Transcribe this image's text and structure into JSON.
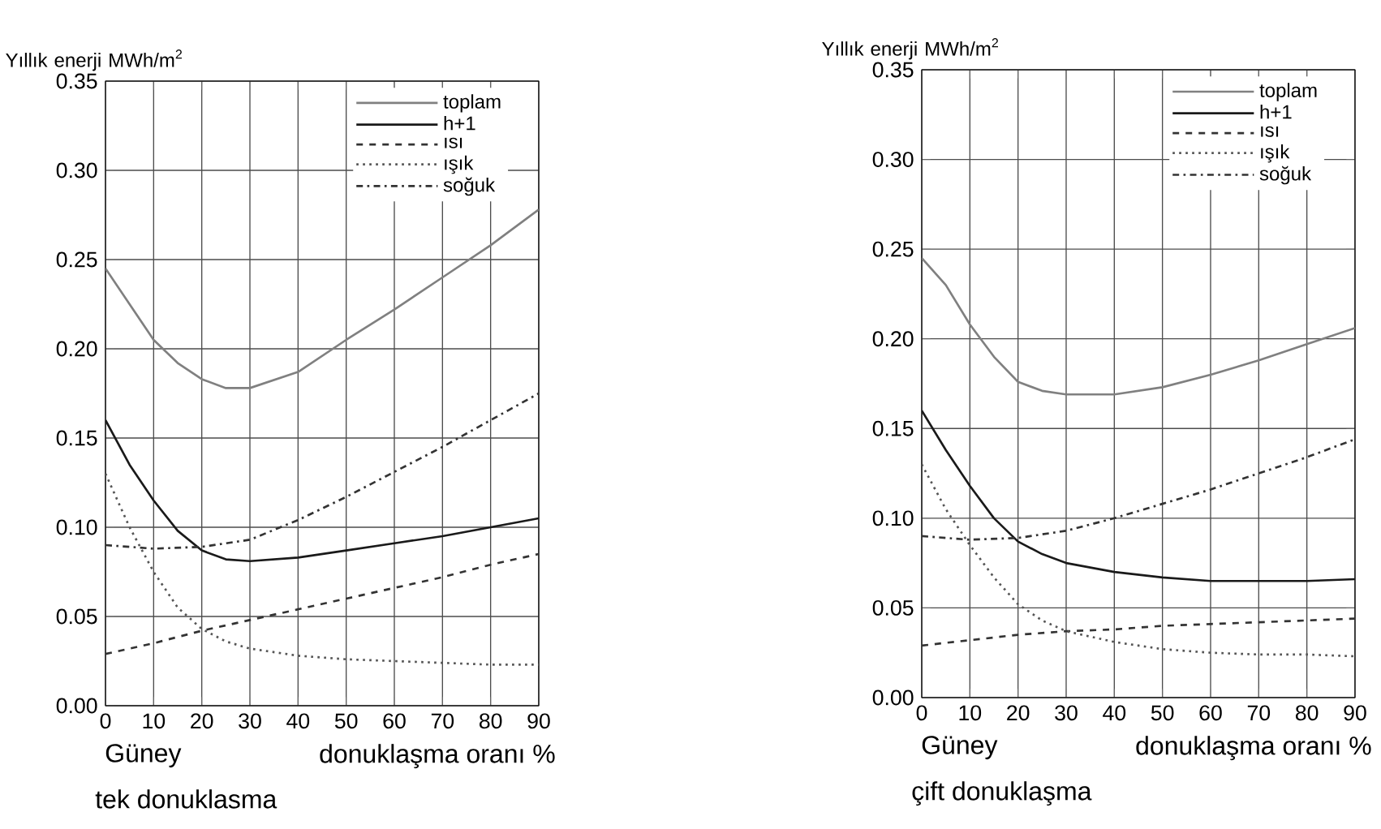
{
  "chart_data": [
    {
      "type": "line",
      "title": "tek donuklasma",
      "ylabel": "Yıllık enerji MWh/m$^{2}$",
      "xlabel": "donuklaşma oranı %",
      "annotations": [
        "Güney"
      ],
      "xlim": [
        0,
        90
      ],
      "ylim": [
        0,
        0.35
      ],
      "xticks": [
        0,
        10,
        20,
        30,
        40,
        50,
        60,
        70,
        80,
        90
      ],
      "yticks": [
        {
          "value": 0,
          "label": "0.00"
        },
        {
          "value": 0.05,
          "label": "0.05"
        },
        {
          "value": 0.1,
          "label": "0.10"
        },
        {
          "value": 0.15,
          "label": "0.15"
        },
        {
          "value": 0.2,
          "label": "0.20"
        },
        {
          "value": 0.25,
          "label": "0.25"
        },
        {
          "value": 0.3,
          "label": "0.30"
        },
        {
          "value": 0.35,
          "label": "0.35"
        }
      ],
      "grid": true,
      "legend": "top right",
      "series": [
        {
          "name": "toplam",
          "color": "#808080",
          "line_style": "solid",
          "x": [
            0,
            5,
            10,
            15,
            20,
            25,
            30,
            40,
            50,
            60,
            70,
            80,
            90
          ],
          "values": [
            0.245,
            0.225,
            0.205,
            0.192,
            0.183,
            0.178,
            0.178,
            0.187,
            0.205,
            0.222,
            0.24,
            0.258,
            0.278
          ]
        },
        {
          "name": "h+1",
          "color": "#1a1a1a",
          "line_style": "solid",
          "x": [
            0,
            5,
            10,
            15,
            20,
            25,
            30,
            40,
            50,
            60,
            70,
            80,
            90
          ],
          "values": [
            0.16,
            0.135,
            0.115,
            0.098,
            0.087,
            0.082,
            0.081,
            0.083,
            0.087,
            0.091,
            0.095,
            0.1,
            0.105
          ]
        },
        {
          "name": "ısı",
          "color": "#333333",
          "line_style": "dashed",
          "x": [
            0,
            10,
            20,
            30,
            40,
            50,
            60,
            70,
            80,
            90
          ],
          "values": [
            0.029,
            0.035,
            0.042,
            0.048,
            0.054,
            0.06,
            0.066,
            0.072,
            0.079,
            0.085
          ]
        },
        {
          "name": "ışık",
          "color": "#555555",
          "line_style": "dotted",
          "x": [
            0,
            5,
            10,
            15,
            20,
            25,
            30,
            40,
            50,
            60,
            70,
            80,
            90
          ],
          "values": [
            0.13,
            0.1,
            0.075,
            0.055,
            0.043,
            0.036,
            0.032,
            0.028,
            0.026,
            0.025,
            0.024,
            0.023,
            0.023
          ]
        },
        {
          "name": "soğuk",
          "color": "#333333",
          "line_style": "dashdot",
          "x": [
            0,
            10,
            20,
            30,
            40,
            50,
            60,
            70,
            80,
            90
          ],
          "values": [
            0.09,
            0.088,
            0.089,
            0.093,
            0.104,
            0.117,
            0.131,
            0.145,
            0.16,
            0.175
          ]
        }
      ]
    },
    {
      "type": "line",
      "title": "çift donuklaşma",
      "ylabel": "Yıllık enerji MWh/m$^{2}$",
      "xlabel": "donuklaşma oranı %",
      "annotations": [
        "Güney"
      ],
      "xlim": [
        0,
        90
      ],
      "ylim": [
        0,
        0.35
      ],
      "xticks": [
        0,
        10,
        20,
        30,
        40,
        50,
        60,
        70,
        80,
        90
      ],
      "yticks": [
        {
          "value": 0,
          "label": "0.00"
        },
        {
          "value": 0.05,
          "label": "0.05"
        },
        {
          "value": 0.1,
          "label": "0.10"
        },
        {
          "value": 0.15,
          "label": "0.15"
        },
        {
          "value": 0.2,
          "label": "0.20"
        },
        {
          "value": 0.25,
          "label": "0.25"
        },
        {
          "value": 0.3,
          "label": "0.30"
        },
        {
          "value": 0.35,
          "label": "0.35"
        }
      ],
      "grid": true,
      "legend": "top right",
      "series": [
        {
          "name": "toplam",
          "color": "#808080",
          "line_style": "solid",
          "x": [
            0,
            5,
            10,
            15,
            20,
            25,
            30,
            40,
            50,
            60,
            70,
            80,
            90
          ],
          "values": [
            0.245,
            0.23,
            0.208,
            0.19,
            0.176,
            0.171,
            0.169,
            0.169,
            0.173,
            0.18,
            0.188,
            0.197,
            0.206
          ]
        },
        {
          "name": "h+1",
          "color": "#1a1a1a",
          "line_style": "solid",
          "x": [
            0,
            5,
            10,
            15,
            20,
            25,
            30,
            40,
            50,
            60,
            70,
            80,
            90
          ],
          "values": [
            0.16,
            0.138,
            0.118,
            0.1,
            0.087,
            0.08,
            0.075,
            0.07,
            0.067,
            0.065,
            0.065,
            0.065,
            0.066
          ]
        },
        {
          "name": "ısı",
          "color": "#333333",
          "line_style": "dashed",
          "x": [
            0,
            10,
            20,
            30,
            40,
            50,
            60,
            70,
            80,
            90
          ],
          "values": [
            0.029,
            0.032,
            0.035,
            0.037,
            0.038,
            0.04,
            0.041,
            0.042,
            0.043,
            0.044
          ]
        },
        {
          "name": "ışık",
          "color": "#555555",
          "line_style": "dotted",
          "x": [
            0,
            5,
            10,
            15,
            20,
            25,
            30,
            40,
            50,
            60,
            70,
            80,
            90
          ],
          "values": [
            0.13,
            0.105,
            0.085,
            0.067,
            0.052,
            0.043,
            0.037,
            0.031,
            0.027,
            0.025,
            0.024,
            0.024,
            0.023
          ]
        },
        {
          "name": "soğuk",
          "color": "#333333",
          "line_style": "dashdot",
          "x": [
            0,
            10,
            20,
            30,
            40,
            50,
            60,
            70,
            80,
            90
          ],
          "values": [
            0.09,
            0.088,
            0.089,
            0.093,
            0.1,
            0.108,
            0.116,
            0.125,
            0.134,
            0.144
          ]
        }
      ]
    }
  ]
}
